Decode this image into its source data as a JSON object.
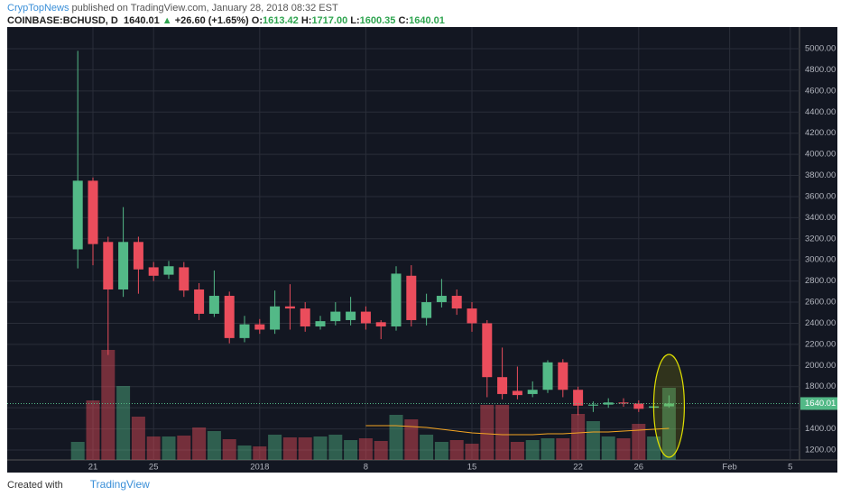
{
  "header": {
    "author": "CrypTopNews",
    "published": "published on TradingView.com, January 28, 2018 08:32 EST",
    "symbol": "COINBASE:BCHUSD, D",
    "last": "1640.01",
    "change": "+26.60 (+1.65%)",
    "o_label": "O:",
    "o": "1613.42",
    "h_label": "H:",
    "h": "1717.00",
    "l_label": "L:",
    "l": "1600.35",
    "c_label": "C:",
    "c": "1640.01"
  },
  "footer": {
    "created": "Created with",
    "brand": "TradingView"
  },
  "chart_data": {
    "type": "candlestick",
    "categories": [
      null,
      null,
      null,
      null,
      null,
      "21",
      null,
      null,
      null,
      "25",
      null,
      null,
      null,
      null,
      null,
      null,
      "2018",
      null,
      null,
      null,
      null,
      null,
      null,
      "8",
      null,
      null,
      null,
      null,
      null,
      null,
      "15",
      null,
      null,
      null,
      null,
      null,
      null,
      "22",
      null,
      null,
      null,
      "26",
      null,
      null,
      null,
      null,
      null,
      "Feb",
      null,
      null,
      null,
      "5"
    ],
    "open": [
      null,
      null,
      null,
      null,
      3100,
      3750,
      3170,
      2720,
      3170,
      2930,
      2860,
      2930,
      2720,
      2490,
      2660,
      2260,
      2390,
      2340,
      2560,
      2540,
      2370,
      2420,
      2430,
      2510,
      2410,
      2370,
      2850,
      2450,
      2600,
      2660,
      2540,
      2400,
      1890,
      1760,
      1730,
      1770,
      2030,
      1770,
      1620,
      1630,
      1650,
      1640,
      1600,
      1613.42,
      null,
      null,
      null,
      null,
      null,
      null,
      null,
      null
    ],
    "high": [
      null,
      null,
      null,
      null,
      4980,
      3780,
      3220,
      3500,
      3220,
      2980,
      2990,
      2980,
      2780,
      2900,
      2700,
      2470,
      2440,
      2710,
      2770,
      2600,
      2470,
      2600,
      2650,
      2560,
      2430,
      2940,
      2950,
      2680,
      2820,
      2720,
      2600,
      2430,
      2170,
      1990,
      1850,
      2050,
      2060,
      1800,
      1660,
      1690,
      1690,
      1670,
      1650,
      1717,
      null,
      null,
      null,
      null,
      null,
      null,
      null,
      null
    ],
    "low": [
      null,
      null,
      null,
      null,
      2920,
      2950,
      2100,
      2650,
      2680,
      2800,
      2820,
      2650,
      2430,
      2460,
      2210,
      2220,
      2300,
      2300,
      2340,
      2320,
      2340,
      2380,
      2380,
      2340,
      2250,
      2330,
      2370,
      2380,
      2550,
      2480,
      2320,
      1700,
      1680,
      1680,
      1700,
      1740,
      1700,
      1530,
      1560,
      1600,
      1610,
      1560,
      1560,
      1600.35,
      null,
      null,
      null,
      null,
      null,
      null,
      null,
      null
    ],
    "close": [
      null,
      null,
      null,
      null,
      3750,
      3150,
      2720,
      3170,
      2910,
      2850,
      2940,
      2710,
      2490,
      2660,
      2260,
      2390,
      2340,
      2560,
      2540,
      2370,
      2420,
      2510,
      2510,
      2400,
      2370,
      2870,
      2430,
      2600,
      2660,
      2540,
      2400,
      1890,
      1730,
      1720,
      1770,
      2030,
      1770,
      1620,
      1630,
      1650,
      1640,
      1590,
      1613.41,
      1640.01,
      null,
      null,
      null,
      null,
      null,
      null,
      null,
      null
    ],
    "volume": [
      null,
      null,
      null,
      null,
      20,
      66,
      122,
      82,
      48,
      26,
      26,
      27,
      36,
      32,
      23,
      16,
      15,
      28,
      25,
      25,
      26,
      28,
      22,
      24,
      21,
      50,
      45,
      28,
      20,
      22,
      18,
      61,
      61,
      20,
      22,
      24,
      24,
      51,
      43,
      26,
      24,
      40,
      26,
      80,
      null,
      null,
      null,
      null,
      null,
      null,
      null,
      null
    ],
    "volume_ma": [
      null,
      null,
      null,
      null,
      null,
      null,
      null,
      null,
      null,
      null,
      null,
      null,
      null,
      null,
      null,
      null,
      null,
      null,
      null,
      null,
      null,
      null,
      null,
      38,
      38,
      38,
      37,
      36,
      34,
      32,
      30,
      29,
      28,
      28,
      28,
      29,
      29,
      30,
      31,
      31,
      32,
      33,
      34,
      35,
      null,
      null,
      null,
      null,
      null,
      null,
      null,
      null
    ],
    "ylim": [
      1106,
      5188
    ],
    "yticks": [
      {
        "value": 1200,
        "label": "1200.00"
      },
      {
        "value": 1400,
        "label": "1400.00"
      },
      {
        "value": 1600,
        "label": "1600.00"
      },
      {
        "value": 1800,
        "label": "1800.00"
      },
      {
        "value": 2000,
        "label": "2000.00"
      },
      {
        "value": 2200,
        "label": "2200.00"
      },
      {
        "value": 2400,
        "label": "2400.00"
      },
      {
        "value": 2600,
        "label": "2600.00"
      },
      {
        "value": 2800,
        "label": "2800.00"
      },
      {
        "value": 3000,
        "label": "3000.00"
      },
      {
        "value": 3200,
        "label": "3200.00"
      },
      {
        "value": 3400,
        "label": "3400.00"
      },
      {
        "value": 3600,
        "label": "3600.00"
      },
      {
        "value": 3800,
        "label": "3800.00"
      },
      {
        "value": 4000,
        "label": "4000.00"
      },
      {
        "value": 4200,
        "label": "4200.00"
      },
      {
        "value": 4400,
        "label": "4400.00"
      },
      {
        "value": 4600,
        "label": "4600.00"
      },
      {
        "value": 4800,
        "label": "4800.00"
      },
      {
        "value": 5000,
        "label": "5000.00"
      }
    ],
    "y2lim": [
      0,
      478
    ],
    "grid": true,
    "up_color": "#53b987",
    "down_color": "#eb4d5c",
    "ma_color": "#f5a623",
    "background": "#131722"
  }
}
